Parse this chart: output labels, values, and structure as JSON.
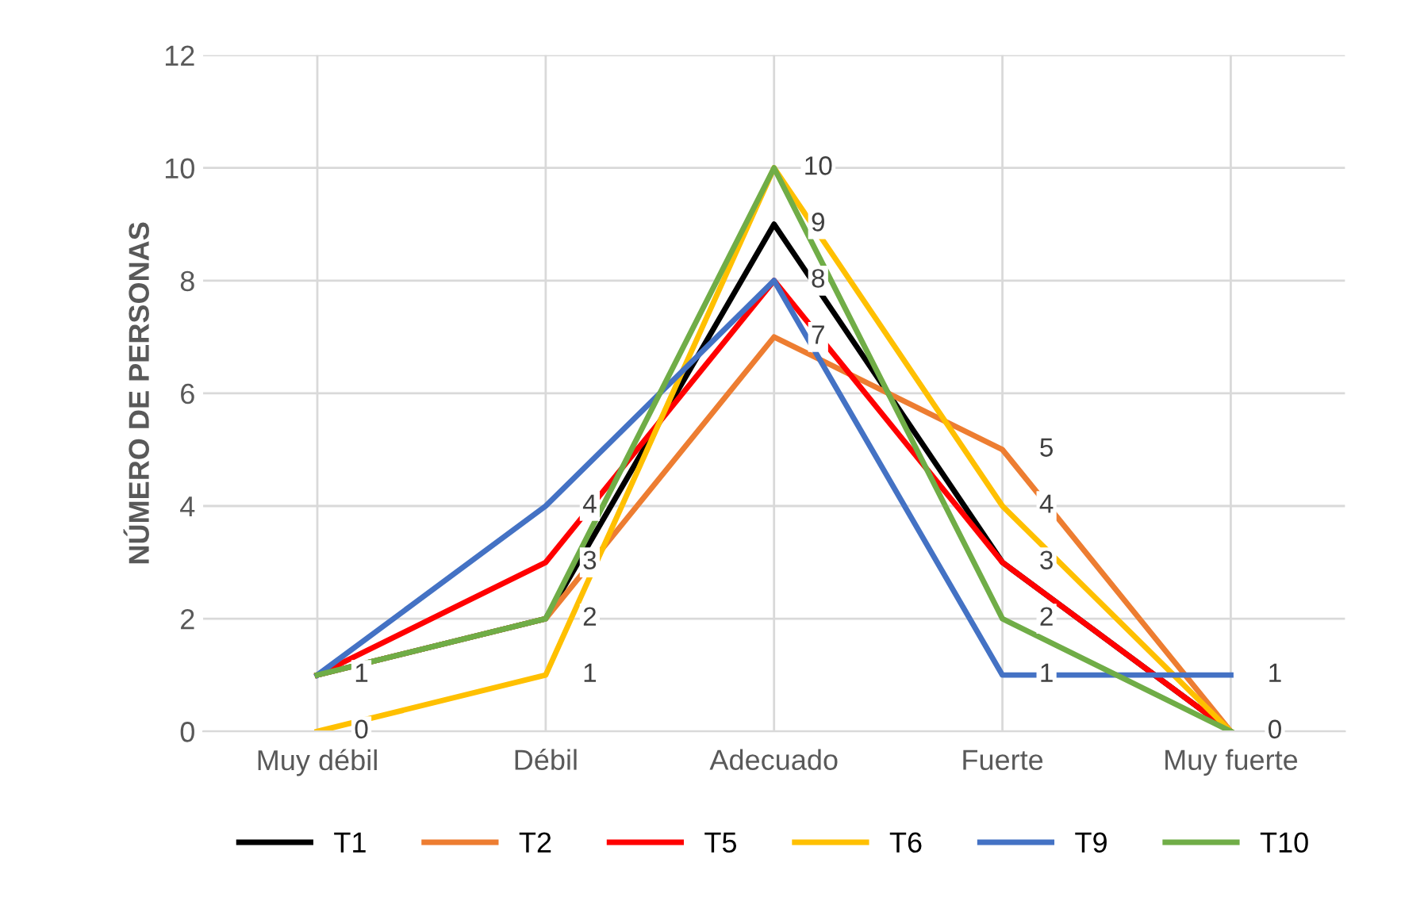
{
  "chart_data": {
    "type": "line",
    "ylabel": "NÚMERO DE PERSONAS",
    "categories": [
      "Muy débil",
      "Débil",
      "Adecuado",
      "Fuerte",
      "Muy fuerte"
    ],
    "series": [
      {
        "name": "T1",
        "color": "#000000",
        "values": [
          1,
          2,
          9,
          3,
          0
        ],
        "value_labels": [
          "1",
          "2",
          "9",
          "3",
          "0"
        ]
      },
      {
        "name": "T2",
        "color": "#ed7d31",
        "values": [
          1,
          2,
          7,
          5,
          0
        ],
        "value_labels": [
          null,
          null,
          "7",
          "5",
          null
        ]
      },
      {
        "name": "T5",
        "color": "#ff0000",
        "values": [
          1,
          3,
          8,
          3,
          0
        ],
        "value_labels": [
          null,
          "3",
          "8",
          null,
          null
        ]
      },
      {
        "name": "T6",
        "color": "#ffc000",
        "values": [
          0,
          1,
          10,
          4,
          0
        ],
        "value_labels": [
          "0",
          "1",
          "10",
          "4",
          null
        ]
      },
      {
        "name": "T9",
        "color": "#4472c4",
        "values": [
          1,
          4,
          8,
          1,
          1
        ],
        "value_labels": [
          null,
          "4",
          null,
          "1",
          "1"
        ]
      },
      {
        "name": "T10",
        "color": "#70ad47",
        "values": [
          1,
          2,
          10,
          2,
          0
        ],
        "value_labels": [
          null,
          null,
          null,
          "2",
          null
        ]
      }
    ],
    "ylim": [
      0,
      12
    ],
    "yticks": [
      0,
      2,
      4,
      6,
      8,
      10,
      12
    ],
    "grid": true,
    "legend": "bottom",
    "marker": "none",
    "line_style": "solid"
  }
}
